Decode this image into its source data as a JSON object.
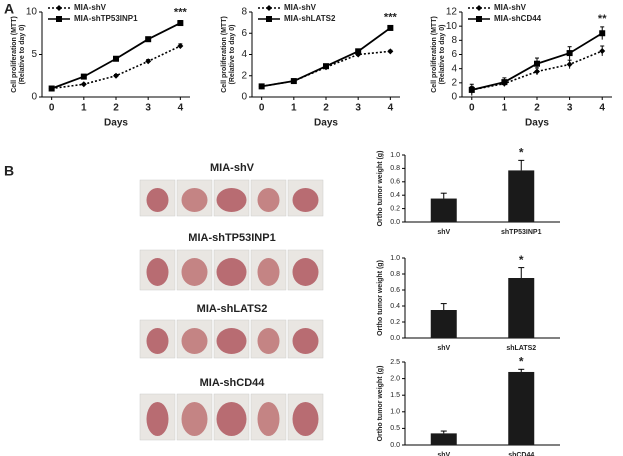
{
  "panel_labels": [
    "A",
    "B"
  ],
  "photo_groups": [
    "MIA-shV",
    "MIA-shTP53INP1",
    "MIA-shLATS2",
    "MIA-shCD44"
  ],
  "chart_data": [
    {
      "type": "line",
      "ylabel": "Cell proliferation (MTT)",
      "ylabel2": "(Relative to day 0)",
      "xlabel": "Days",
      "x": [
        0,
        1,
        2,
        3,
        4
      ],
      "xlim": [
        -0.3,
        4.3
      ],
      "xticks": [
        0,
        1,
        2,
        3,
        4
      ],
      "ylim": [
        0,
        10
      ],
      "yticks": [
        0,
        5,
        10
      ],
      "annotation": "***",
      "series": [
        {
          "name": "MIA-shV",
          "color": "#000000",
          "dashed": true,
          "marker": "diamond",
          "values": [
            1,
            1.5,
            2.5,
            4.2,
            6
          ],
          "errors": [
            0.1,
            0.1,
            0.15,
            0.2,
            0.25
          ]
        },
        {
          "name": "MIA-shTP53INP1",
          "color": "#000000",
          "dashed": false,
          "marker": "square",
          "values": [
            1,
            2.4,
            4.5,
            6.8,
            8.7
          ],
          "errors": [
            0.1,
            0.15,
            0.2,
            0.25,
            0.3
          ]
        }
      ]
    },
    {
      "type": "line",
      "ylabel": "Cell proliferation (MTT)",
      "ylabel2": "(Relative to day 0)",
      "xlabel": "Days",
      "x": [
        0,
        1,
        2,
        3,
        4
      ],
      "xlim": [
        -0.3,
        4.3
      ],
      "xticks": [
        0,
        1,
        2,
        3,
        4
      ],
      "ylim": [
        0,
        8
      ],
      "yticks": [
        0,
        2,
        4,
        6,
        8
      ],
      "annotation": "***",
      "series": [
        {
          "name": "MIA-shV",
          "color": "#000000",
          "dashed": true,
          "marker": "diamond",
          "values": [
            1,
            1.5,
            2.8,
            4,
            4.3
          ],
          "errors": [
            0.05,
            0.1,
            0.15,
            0.2,
            0.1
          ]
        },
        {
          "name": "MIA-shLATS2",
          "color": "#000000",
          "dashed": false,
          "marker": "square",
          "values": [
            1,
            1.5,
            2.9,
            4.3,
            6.5
          ],
          "errors": [
            0.05,
            0.1,
            0.15,
            0.2,
            0.2
          ]
        }
      ]
    },
    {
      "type": "line",
      "ylabel": "Cell proliferation (MTT)",
      "ylabel2": "(Relative to day 0)",
      "xlabel": "Days",
      "x": [
        0,
        1,
        2,
        3,
        4
      ],
      "xlim": [
        -0.3,
        4.3
      ],
      "xticks": [
        0,
        1,
        2,
        3,
        4
      ],
      "ylim": [
        0,
        12
      ],
      "yticks": [
        0,
        2,
        4,
        6,
        8,
        10,
        12
      ],
      "annotation": "**",
      "series": [
        {
          "name": "MIA-shV",
          "color": "#000000",
          "dashed": true,
          "marker": "diamond",
          "values": [
            1,
            1.9,
            3.6,
            4.6,
            6.5
          ],
          "errors": [
            0.5,
            0.4,
            0.5,
            0.6,
            0.7
          ]
        },
        {
          "name": "MIA-shCD44",
          "color": "#000000",
          "dashed": false,
          "marker": "square",
          "values": [
            1,
            2.1,
            4.7,
            6.2,
            9
          ],
          "errors": [
            0.8,
            0.6,
            0.8,
            0.9,
            0.9
          ]
        }
      ]
    },
    {
      "type": "bar",
      "ylabel": "Ortho tumor weight (g)",
      "categories": [
        "shV",
        "shTP53INP1"
      ],
      "values": [
        0.35,
        0.77
      ],
      "errors": [
        0.08,
        0.15
      ],
      "color": "#1a1a1a",
      "annotation": "*",
      "ylim": [
        0,
        1.0
      ],
      "yticks": [
        {
          "value": 0,
          "label": "0.0"
        },
        0.2,
        0.4,
        0.6,
        0.8,
        {
          "value": 1.0,
          "label": "1.0"
        }
      ]
    },
    {
      "type": "bar",
      "ylabel": "Ortho tumor weight (g)",
      "categories": [
        "shV",
        "shLATS2"
      ],
      "values": [
        0.35,
        0.75
      ],
      "errors": [
        0.08,
        0.13
      ],
      "color": "#1a1a1a",
      "annotation": "*",
      "ylim": [
        0,
        1.0
      ],
      "yticks": [
        {
          "value": 0,
          "label": "0.0"
        },
        0.2,
        0.4,
        0.6,
        0.8,
        {
          "value": 1.0,
          "label": "1.0"
        }
      ]
    },
    {
      "type": "bar",
      "ylabel": "Ortho tumor weight (g)",
      "categories": [
        "shV",
        "shCD44"
      ],
      "values": [
        0.35,
        2.2
      ],
      "errors": [
        0.07,
        0.08
      ],
      "color": "#1a1a1a",
      "annotation": "*",
      "ylim": [
        0,
        2.5
      ],
      "yticks": [
        {
          "value": 0,
          "label": "0.0"
        },
        0.5,
        {
          "value": 1.0,
          "label": "1.0"
        },
        1.5,
        {
          "value": 2.0,
          "label": "2.0"
        },
        2.5
      ]
    }
  ]
}
